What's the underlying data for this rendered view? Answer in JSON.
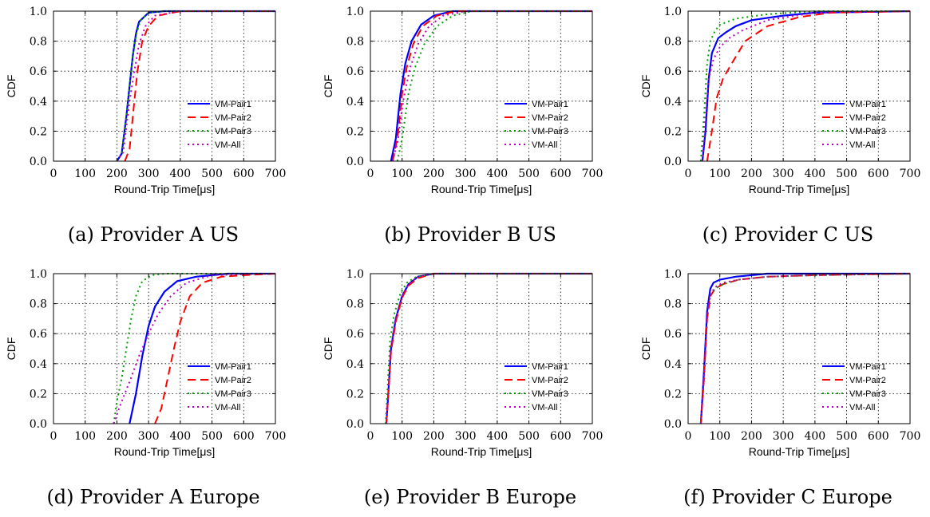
{
  "style": {
    "series_colors": [
      "#0000ff",
      "#ff0000",
      "#00a000",
      "#c000c0"
    ],
    "series_dash": [
      "solid",
      "dashed",
      "dotted",
      "dotted"
    ]
  },
  "chart_data": [
    {
      "type": "line",
      "caption": "(a) Provider A US",
      "xlabel": "Round-Trip Time[μs]",
      "ylabel": "CDF",
      "xlim": [
        0,
        700
      ],
      "ylim": [
        0,
        1
      ],
      "xticks": [
        "0",
        "100",
        "200",
        "300",
        "400",
        "500",
        "600",
        "700"
      ],
      "yticks": [
        "0.0",
        "0.2",
        "0.4",
        "0.6",
        "0.8",
        "1.0"
      ],
      "grid": true,
      "legend": "lower-right",
      "series": [
        {
          "name": "VM-Pair1",
          "x": [
            200,
            215,
            230,
            240,
            250,
            260,
            270,
            300,
            350,
            700
          ],
          "y": [
            0,
            0.05,
            0.3,
            0.5,
            0.7,
            0.85,
            0.93,
            0.99,
            1,
            1
          ]
        },
        {
          "name": "VM-Pair2",
          "x": [
            225,
            240,
            255,
            265,
            280,
            300,
            330,
            400,
            700
          ],
          "y": [
            0,
            0.08,
            0.4,
            0.6,
            0.8,
            0.9,
            0.97,
            1,
            1
          ]
        },
        {
          "name": "VM-Pair3",
          "x": [
            200,
            215,
            230,
            240,
            250,
            260,
            275,
            300,
            350,
            700
          ],
          "y": [
            0,
            0.05,
            0.3,
            0.5,
            0.7,
            0.84,
            0.94,
            0.99,
            1,
            1
          ]
        },
        {
          "name": "VM-All",
          "x": [
            200,
            220,
            240,
            255,
            270,
            290,
            320,
            400,
            700
          ],
          "y": [
            0,
            0.06,
            0.4,
            0.6,
            0.78,
            0.9,
            0.97,
            1,
            1
          ]
        }
      ]
    },
    {
      "type": "line",
      "caption": "(b) Provider B US",
      "xlabel": "Round-Trip Time[μs]",
      "ylabel": "CDF",
      "xlim": [
        0,
        700
      ],
      "ylim": [
        0,
        1
      ],
      "xticks": [
        "0",
        "100",
        "200",
        "300",
        "400",
        "500",
        "600",
        "700"
      ],
      "yticks": [
        "0.0",
        "0.2",
        "0.4",
        "0.6",
        "0.8",
        "1.0"
      ],
      "grid": true,
      "legend": "lower-right",
      "series": [
        {
          "name": "VM-Pair1",
          "x": [
            65,
            80,
            95,
            110,
            130,
            160,
            200,
            260,
            700
          ],
          "y": [
            0,
            0.15,
            0.45,
            0.65,
            0.8,
            0.91,
            0.97,
            1,
            1
          ]
        },
        {
          "name": "VM-Pair2",
          "x": [
            70,
            85,
            100,
            115,
            135,
            165,
            210,
            270,
            700
          ],
          "y": [
            0,
            0.15,
            0.45,
            0.63,
            0.78,
            0.9,
            0.97,
            1,
            1
          ]
        },
        {
          "name": "VM-Pair3",
          "x": [
            85,
            100,
            120,
            140,
            170,
            210,
            260,
            320,
            700
          ],
          "y": [
            0,
            0.15,
            0.45,
            0.62,
            0.78,
            0.9,
            0.97,
            1,
            1
          ]
        },
        {
          "name": "VM-All",
          "x": [
            70,
            85,
            105,
            125,
            150,
            185,
            230,
            300,
            700
          ],
          "y": [
            0,
            0.12,
            0.42,
            0.62,
            0.78,
            0.9,
            0.97,
            1,
            1
          ]
        }
      ]
    },
    {
      "type": "line",
      "caption": "(c) Provider C US",
      "xlabel": "Round-Trip Time[μs]",
      "ylabel": "CDF",
      "xlim": [
        0,
        700
      ],
      "ylim": [
        0,
        1
      ],
      "xticks": [
        "0",
        "100",
        "200",
        "300",
        "400",
        "500",
        "600",
        "700"
      ],
      "yticks": [
        "0.0",
        "0.2",
        "0.4",
        "0.6",
        "0.8",
        "1.0"
      ],
      "grid": true,
      "legend": "lower-right",
      "series": [
        {
          "name": "VM-Pair1",
          "x": [
            45,
            55,
            65,
            75,
            95,
            120,
            150,
            200,
            300,
            400,
            700
          ],
          "y": [
            0,
            0.2,
            0.55,
            0.72,
            0.82,
            0.86,
            0.9,
            0.94,
            0.97,
            0.99,
            1
          ]
        },
        {
          "name": "VM-Pair2",
          "x": [
            60,
            75,
            90,
            110,
            140,
            180,
            250,
            350,
            450,
            700
          ],
          "y": [
            0,
            0.2,
            0.42,
            0.55,
            0.66,
            0.8,
            0.9,
            0.96,
            0.99,
            1
          ]
        },
        {
          "name": "VM-Pair3",
          "x": [
            40,
            50,
            60,
            70,
            85,
            100,
            150,
            250,
            400,
            700
          ],
          "y": [
            0,
            0.3,
            0.65,
            0.8,
            0.87,
            0.91,
            0.95,
            0.98,
            1,
            1
          ]
        },
        {
          "name": "VM-All",
          "x": [
            45,
            55,
            65,
            80,
            100,
            130,
            170,
            250,
            400,
            700
          ],
          "y": [
            0,
            0.3,
            0.55,
            0.68,
            0.76,
            0.82,
            0.87,
            0.94,
            0.99,
            1
          ]
        }
      ]
    },
    {
      "type": "line",
      "caption": "(d) Provider A Europe",
      "xlabel": "Round-Trip Time[μs]",
      "ylabel": "CDF",
      "xlim": [
        0,
        700
      ],
      "ylim": [
        0,
        1
      ],
      "xticks": [
        "0",
        "100",
        "200",
        "300",
        "400",
        "500",
        "600",
        "700"
      ],
      "yticks": [
        "0.0",
        "0.2",
        "0.4",
        "0.6",
        "0.8",
        "1.0"
      ],
      "grid": true,
      "legend": "lower-right",
      "series": [
        {
          "name": "VM-Pair1",
          "x": [
            240,
            260,
            280,
            300,
            320,
            350,
            390,
            450,
            550,
            700
          ],
          "y": [
            0,
            0.2,
            0.45,
            0.65,
            0.78,
            0.88,
            0.95,
            0.98,
            1,
            1
          ]
        },
        {
          "name": "VM-Pair2",
          "x": [
            320,
            340,
            360,
            380,
            400,
            430,
            470,
            530,
            600,
            700
          ],
          "y": [
            0,
            0.1,
            0.3,
            0.5,
            0.68,
            0.85,
            0.94,
            0.98,
            0.99,
            1
          ]
        },
        {
          "name": "VM-Pair3",
          "x": [
            190,
            200,
            215,
            230,
            245,
            260,
            280,
            310,
            350,
            700
          ],
          "y": [
            0,
            0.15,
            0.3,
            0.5,
            0.7,
            0.85,
            0.95,
            0.99,
            1,
            1
          ]
        },
        {
          "name": "VM-All",
          "x": [
            190,
            210,
            240,
            270,
            300,
            330,
            370,
            420,
            500,
            700
          ],
          "y": [
            0,
            0.12,
            0.28,
            0.45,
            0.6,
            0.73,
            0.85,
            0.94,
            0.99,
            1
          ]
        }
      ]
    },
    {
      "type": "line",
      "caption": "(e) Provider B Europe",
      "xlabel": "Round-Trip Time[μs]",
      "ylabel": "CDF",
      "xlim": [
        0,
        700
      ],
      "ylim": [
        0,
        1
      ],
      "xticks": [
        "0",
        "100",
        "200",
        "300",
        "400",
        "500",
        "600",
        "700"
      ],
      "yticks": [
        "0.0",
        "0.2",
        "0.4",
        "0.6",
        "0.8",
        "1.0"
      ],
      "grid": true,
      "legend": "lower-right",
      "series": [
        {
          "name": "VM-Pair1",
          "x": [
            50,
            55,
            65,
            80,
            100,
            120,
            150,
            200,
            700
          ],
          "y": [
            0,
            0.15,
            0.5,
            0.7,
            0.85,
            0.93,
            0.98,
            1,
            1
          ]
        },
        {
          "name": "VM-Pair2",
          "x": [
            50,
            55,
            65,
            80,
            100,
            120,
            150,
            200,
            700
          ],
          "y": [
            0,
            0.14,
            0.48,
            0.68,
            0.84,
            0.92,
            0.97,
            1,
            1
          ]
        },
        {
          "name": "VM-Pair3",
          "x": [
            48,
            53,
            62,
            75,
            95,
            115,
            145,
            200,
            700
          ],
          "y": [
            0,
            0.18,
            0.55,
            0.73,
            0.87,
            0.94,
            0.98,
            1,
            1
          ]
        },
        {
          "name": "VM-All",
          "x": [
            50,
            55,
            65,
            80,
            100,
            120,
            150,
            200,
            700
          ],
          "y": [
            0,
            0.15,
            0.5,
            0.7,
            0.85,
            0.93,
            0.98,
            1,
            1
          ]
        }
      ]
    },
    {
      "type": "line",
      "caption": "(f) Provider C Europe",
      "xlabel": "Round-Trip Time[μs]",
      "ylabel": "CDF",
      "xlim": [
        0,
        700
      ],
      "ylim": [
        0,
        1
      ],
      "xticks": [
        "0",
        "100",
        "200",
        "300",
        "400",
        "500",
        "600",
        "700"
      ],
      "yticks": [
        "0.0",
        "0.2",
        "0.4",
        "0.6",
        "0.8",
        "1.0"
      ],
      "grid": true,
      "legend": "lower-right",
      "series": [
        {
          "name": "VM-Pair1",
          "x": [
            40,
            50,
            60,
            70,
            80,
            100,
            150,
            250,
            700
          ],
          "y": [
            0,
            0.35,
            0.75,
            0.9,
            0.94,
            0.96,
            0.98,
            1,
            1
          ]
        },
        {
          "name": "VM-Pair2",
          "x": [
            40,
            50,
            60,
            70,
            85,
            110,
            160,
            250,
            400,
            700
          ],
          "y": [
            0,
            0.3,
            0.7,
            0.85,
            0.9,
            0.93,
            0.96,
            0.98,
            0.99,
            1
          ]
        },
        {
          "name": "VM-Pair3",
          "x": [
            40,
            50,
            60,
            70,
            85,
            110,
            160,
            250,
            400,
            700
          ],
          "y": [
            0,
            0.3,
            0.7,
            0.85,
            0.9,
            0.93,
            0.96,
            0.98,
            0.99,
            1
          ]
        },
        {
          "name": "VM-All",
          "x": [
            40,
            50,
            60,
            70,
            85,
            110,
            160,
            250,
            400,
            700
          ],
          "y": [
            0,
            0.3,
            0.7,
            0.86,
            0.91,
            0.94,
            0.96,
            0.98,
            0.99,
            1
          ]
        }
      ]
    }
  ]
}
